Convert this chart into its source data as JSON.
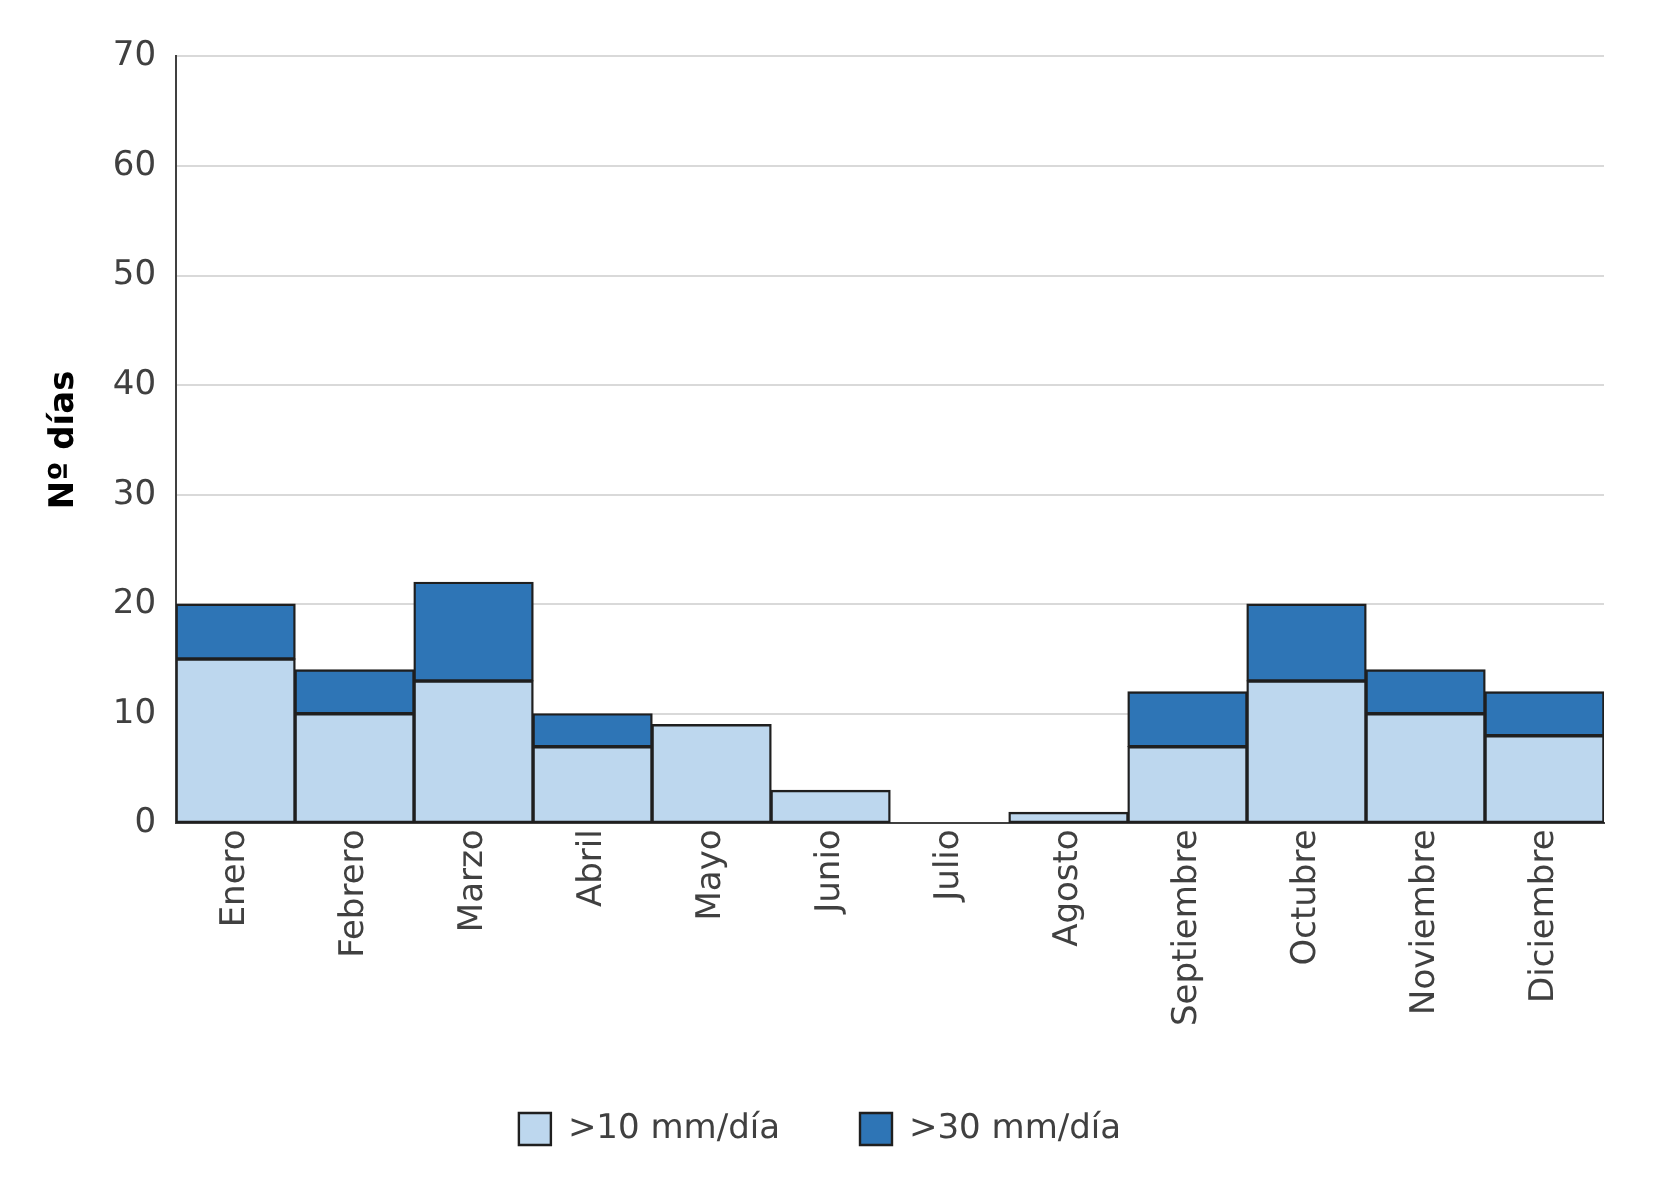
{
  "chart_data": {
    "type": "bar",
    "stacked": true,
    "ylabel": "Nº días",
    "categories": [
      "Enero",
      "Febrero",
      "Marzo",
      "Abril",
      "Mayo",
      "Junio",
      "Julio",
      "Agosto",
      "Septiembre",
      "Octubre",
      "Noviembre",
      "Diciembre"
    ],
    "series": [
      {
        "name": ">10 mm/día",
        "color": "#bdd7ee",
        "values": [
          15,
          10,
          13,
          7,
          9,
          3,
          0,
          1,
          7,
          13,
          10,
          8
        ]
      },
      {
        "name": ">30 mm/día",
        "color": "#2e75b6",
        "values": [
          5,
          4,
          9,
          3,
          0,
          0,
          0,
          0,
          5,
          7,
          4,
          4
        ]
      }
    ],
    "ylim": [
      0,
      70
    ],
    "yticks": [
      0,
      10,
      20,
      30,
      40,
      50,
      60,
      70
    ],
    "grid": "y",
    "legend": "bottom"
  }
}
